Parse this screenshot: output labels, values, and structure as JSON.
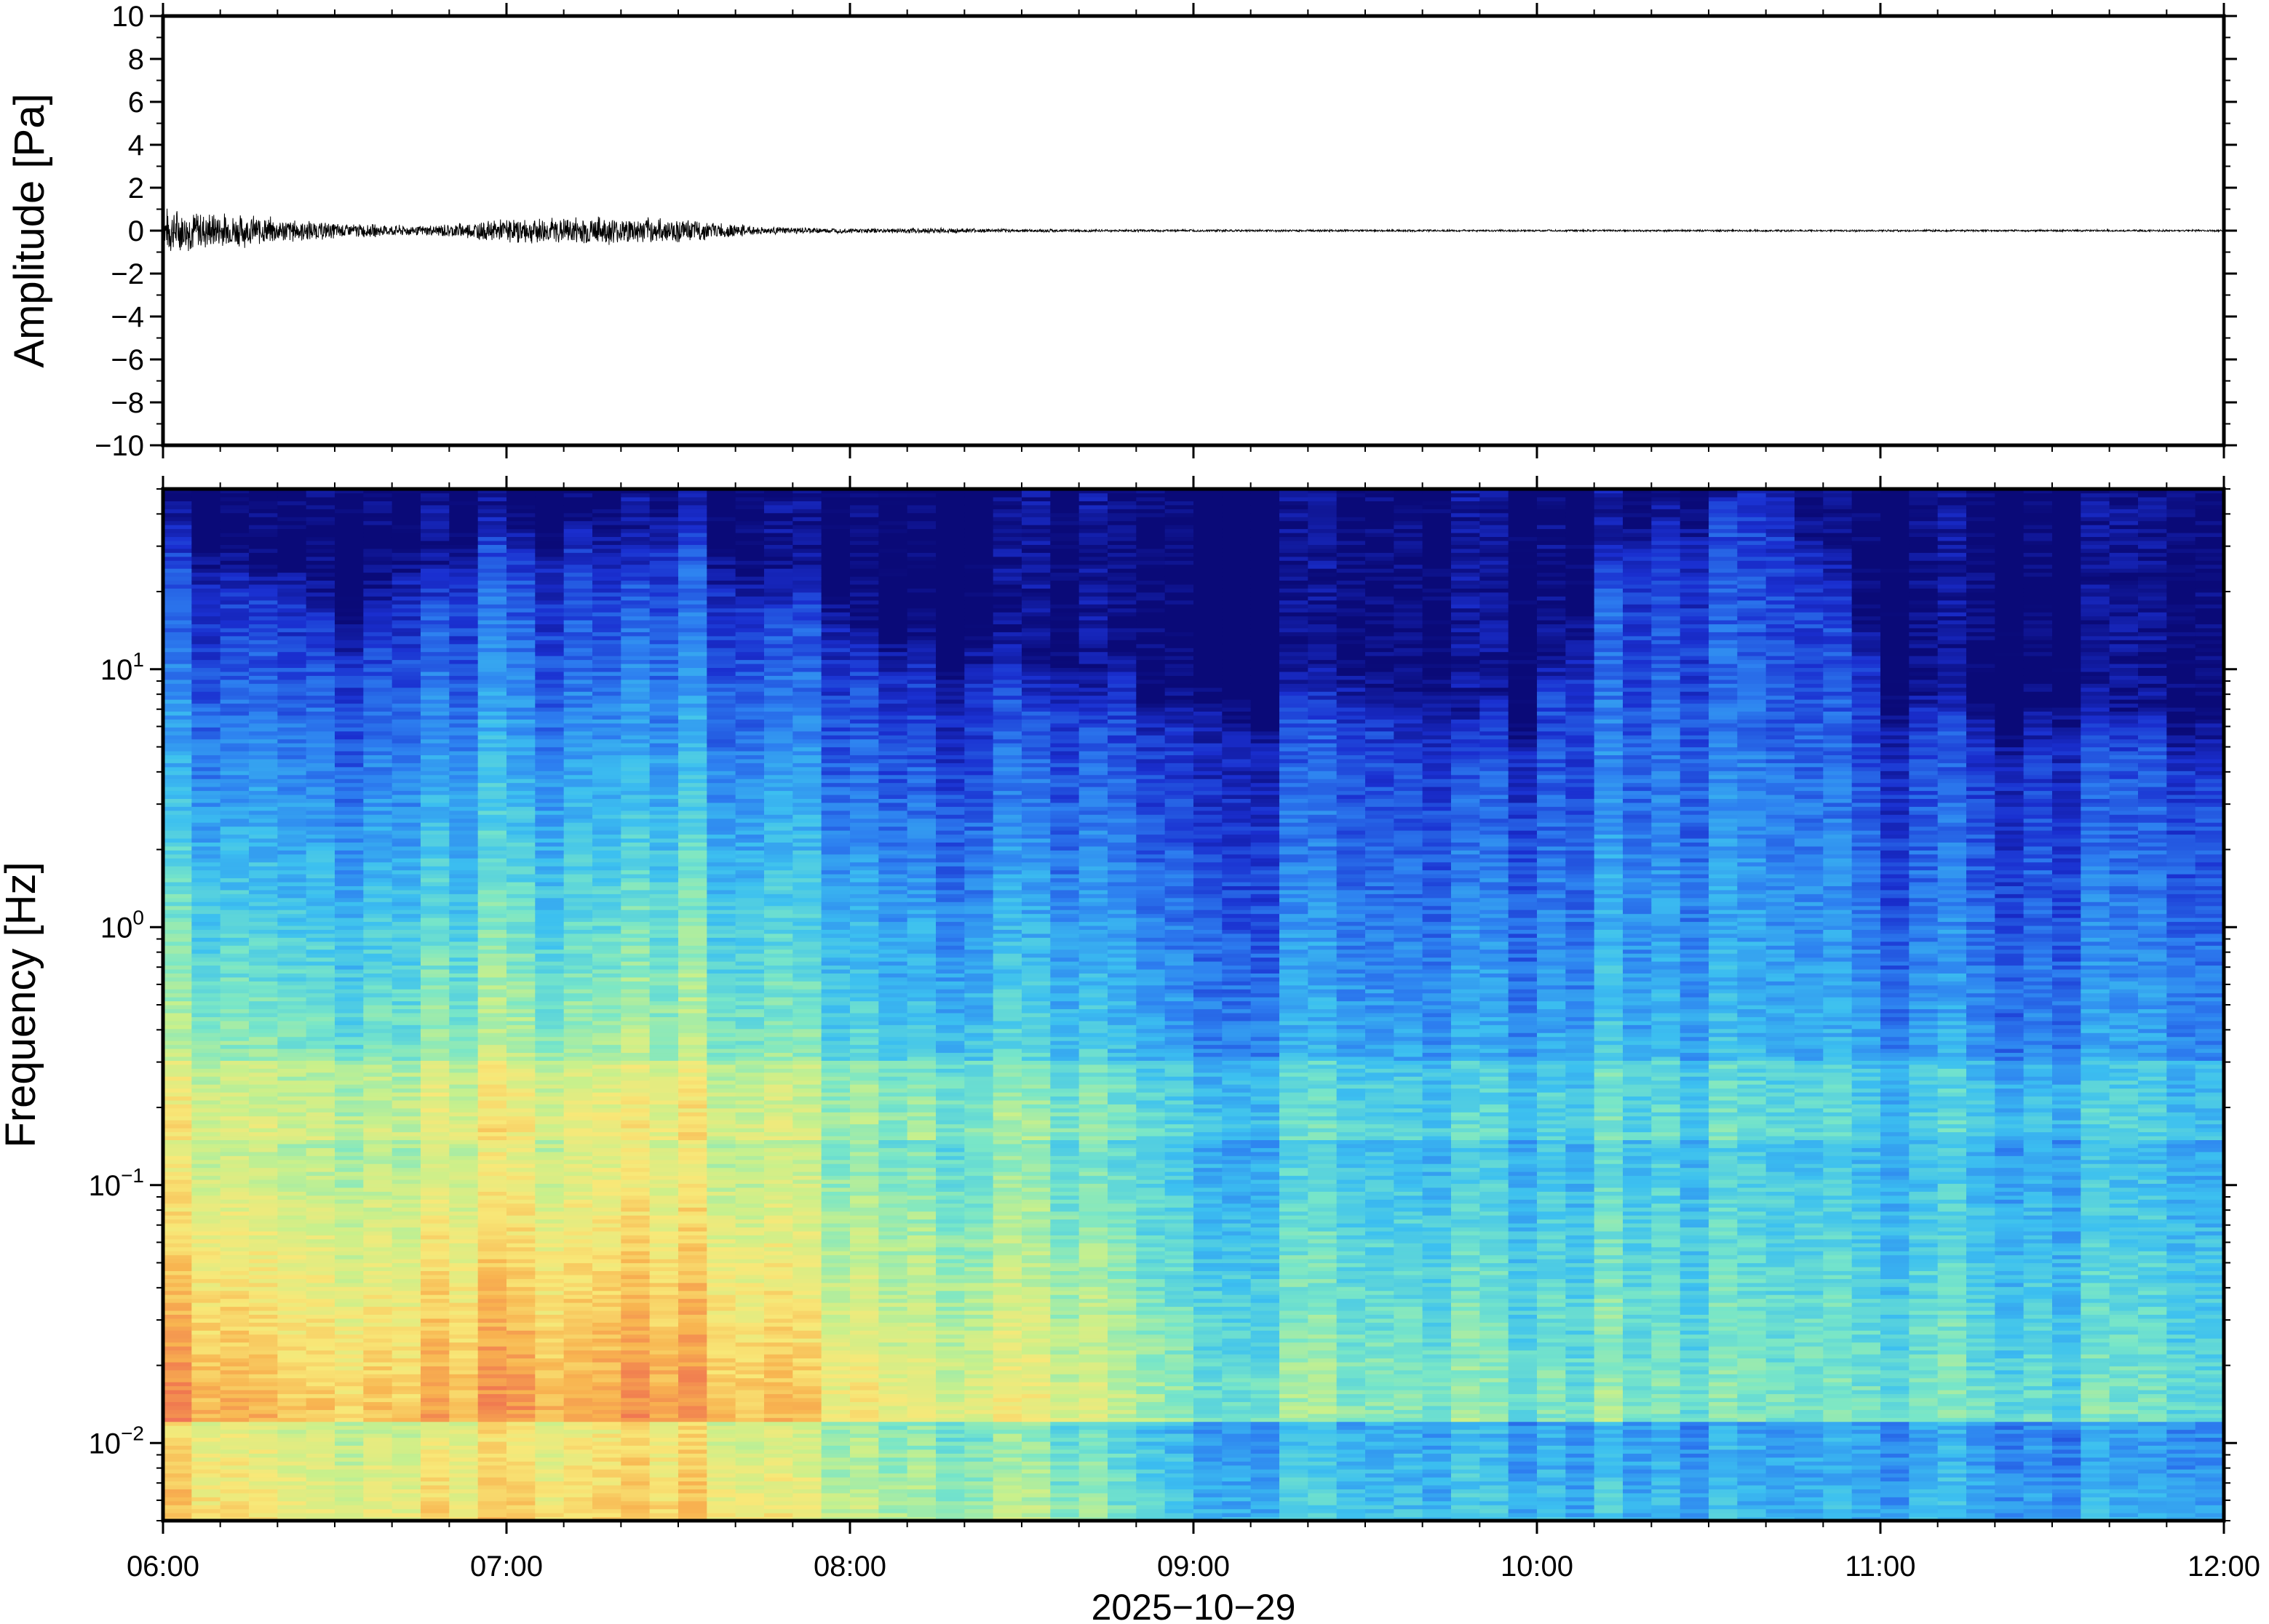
{
  "chart_data": [
    {
      "type": "line",
      "panel": "waveform",
      "ylabel": "Amplitude [Pa]",
      "ylim": [
        -10,
        10
      ],
      "yticks": [
        "10",
        "8",
        "6",
        "4",
        "2",
        "0",
        "−2",
        "−4",
        "−6",
        "−8",
        "−10"
      ],
      "yticks_values": [
        10,
        8,
        6,
        4,
        2,
        0,
        -2,
        -4,
        -6,
        -8,
        -10
      ],
      "xlim": [
        "06:00",
        "12:00"
      ],
      "envelope": {
        "x": [
          "06:00",
          "06:15",
          "06:30",
          "06:45",
          "07:00",
          "07:15",
          "07:30",
          "07:45",
          "08:00",
          "08:15",
          "08:30",
          "09:00",
          "10:00",
          "11:00",
          "12:00"
        ],
        "peak_abs": [
          1.2,
          0.8,
          0.4,
          0.25,
          0.6,
          0.75,
          0.6,
          0.2,
          0.12,
          0.15,
          0.08,
          0.06,
          0.05,
          0.05,
          0.05
        ]
      },
      "trace_color": "#000000"
    },
    {
      "type": "heatmap",
      "panel": "spectrogram",
      "ylabel": "Frequency [Hz]",
      "xlabel": "2025−10−29",
      "yscale": "log",
      "ylim": [
        0.005,
        50
      ],
      "ytick_labels": [
        {
          "base": "10",
          "exp": "1",
          "value": 10
        },
        {
          "base": "10",
          "exp": "0",
          "value": 1
        },
        {
          "base": "10",
          "exp": "−1",
          "value": 0.1
        },
        {
          "base": "10",
          "exp": "−2",
          "value": 0.01
        }
      ],
      "xticks": [
        "06:00",
        "07:00",
        "08:00",
        "09:00",
        "10:00",
        "11:00",
        "12:00"
      ],
      "colormap": [
        "#0a0a78",
        "#1a2fd0",
        "#2d7ff0",
        "#3cc0f0",
        "#78e6c8",
        "#c8f08c",
        "#f8e878",
        "#f8b450",
        "#f07850",
        "#f06470"
      ],
      "energy_by_hour": {
        "x": [
          "06:00",
          "06:30",
          "07:00",
          "07:30",
          "08:00",
          "08:30",
          "09:00",
          "10:00",
          "10:40",
          "11:00",
          "12:00"
        ],
        "top_freq_hz": [
          30,
          12,
          25,
          25,
          10,
          8,
          6,
          5,
          45,
          5,
          5
        ],
        "low_freq_level": [
          0.95,
          0.8,
          0.9,
          0.9,
          0.75,
          0.7,
          0.55,
          0.5,
          0.5,
          0.5,
          0.45
        ]
      }
    }
  ]
}
